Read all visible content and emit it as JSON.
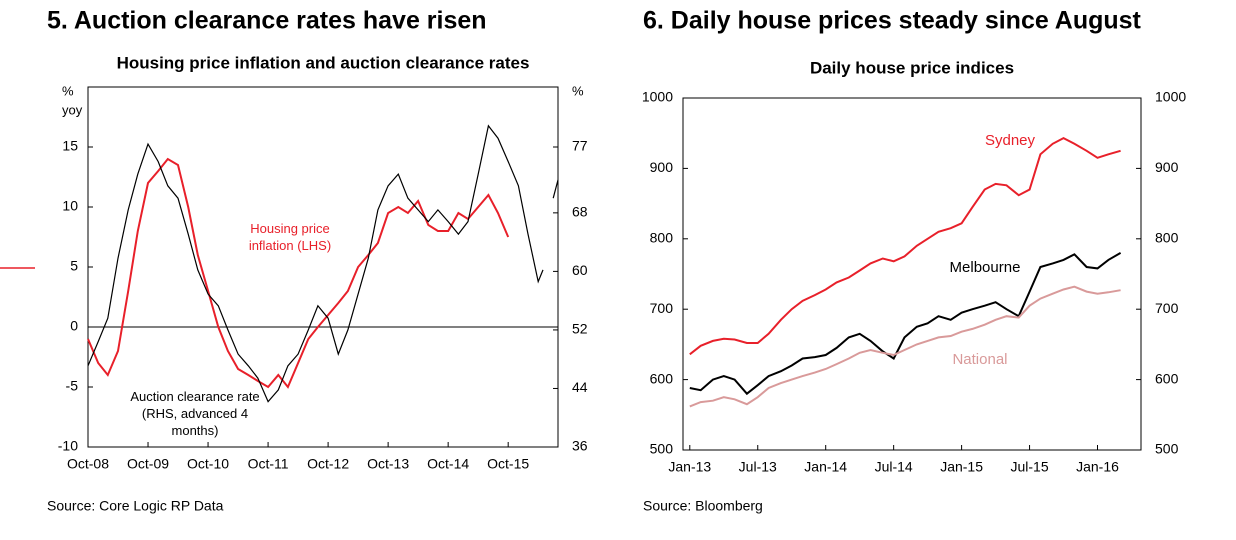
{
  "chart_data": [
    {
      "type": "line",
      "heading": "5. Auction clearance rates have risen",
      "title": "Housing price inflation and auction clearance rates",
      "source": "Source: Core Logic RP Data",
      "ylabel": [
        "%",
        "yoy"
      ],
      "y2label": "%",
      "xlim": [
        2008.75,
        2016.58
      ],
      "xticks": [
        {
          "value": 2008.75,
          "label": "Oct-08"
        },
        {
          "value": 2009.75,
          "label": "Oct-09"
        },
        {
          "value": 2010.75,
          "label": "Oct-10"
        },
        {
          "value": 2011.75,
          "label": "Oct-11"
        },
        {
          "value": 2012.75,
          "label": "Oct-12"
        },
        {
          "value": 2013.75,
          "label": "Oct-13"
        },
        {
          "value": 2014.75,
          "label": "Oct-14"
        },
        {
          "value": 2015.75,
          "label": "Oct-15"
        }
      ],
      "ylim": [
        -10,
        20
      ],
      "yticks": [
        -10,
        -5,
        0,
        5,
        10,
        15
      ],
      "y2lim": [
        36,
        85.2
      ],
      "y2ticks": [
        36,
        44,
        52,
        60,
        68,
        77
      ],
      "zero_line": true,
      "x": [
        2008.75,
        2008.92,
        2009.08,
        2009.25,
        2009.42,
        2009.58,
        2009.75,
        2009.92,
        2010.08,
        2010.25,
        2010.42,
        2010.58,
        2010.75,
        2010.92,
        2011.08,
        2011.25,
        2011.42,
        2011.58,
        2011.75,
        2011.92,
        2012.08,
        2012.25,
        2012.42,
        2012.58,
        2012.75,
        2012.92,
        2013.08,
        2013.25,
        2013.42,
        2013.58,
        2013.75,
        2013.92,
        2014.08,
        2014.25,
        2014.42,
        2014.58,
        2014.75,
        2014.92,
        2015.08,
        2015.25,
        2015.42,
        2015.58,
        2015.75,
        2015.92,
        2016.08,
        2016.25,
        2016.33,
        2016.42,
        2016.5,
        2016.58
      ],
      "series": [
        {
          "name": "Housing price inflation (LHS)",
          "color": "#e8202a",
          "values": [
            -1,
            -3,
            -4,
            -2,
            3,
            8,
            12,
            13,
            14,
            13.5,
            10,
            6,
            3,
            0,
            -2,
            -3.5,
            -4,
            -4.5,
            -5,
            -4,
            -5,
            -3,
            -1,
            0,
            1,
            2,
            3,
            5,
            6,
            7,
            9.5,
            10,
            9.5,
            10.5,
            8.5,
            8,
            8,
            9.5,
            9,
            10,
            11,
            9.5,
            7.5,
            null,
            null,
            null,
            null,
            null,
            null,
            null
          ]
        },
        {
          "name": "Auction clearance rate (RHS, advanced 4 months)",
          "color": "#000000",
          "axis": "y2",
          "values": [
            47.1,
            50.4,
            53.6,
            61.8,
            68.4,
            73.3,
            77.4,
            75,
            71.7,
            70,
            65.1,
            60.2,
            56.9,
            55.3,
            52,
            48.7,
            47.1,
            45.4,
            42.2,
            43.8,
            47.1,
            48.7,
            52,
            55.3,
            53.6,
            48.7,
            52,
            56.9,
            61.8,
            68.4,
            71.7,
            73.3,
            70,
            68.4,
            66.8,
            68.4,
            66.8,
            65.1,
            66.8,
            73.3,
            79.9,
            78.2,
            75,
            71.7,
            65.1,
            58.6,
            60.2,
            null,
            70,
            72.5
          ]
        }
      ]
    },
    {
      "type": "line",
      "heading": "6. Daily house prices steady since August",
      "title": "Daily house price indices",
      "source": "Source: Bloomberg",
      "xlim": [
        2012.95,
        2016.32
      ],
      "xticks": [
        {
          "value": 2013.0,
          "label": "Jan-13"
        },
        {
          "value": 2013.5,
          "label": "Jul-13"
        },
        {
          "value": 2014.0,
          "label": "Jan-14"
        },
        {
          "value": 2014.5,
          "label": "Jul-14"
        },
        {
          "value": 2015.0,
          "label": "Jan-15"
        },
        {
          "value": 2015.5,
          "label": "Jul-15"
        },
        {
          "value": 2016.0,
          "label": "Jan-16"
        }
      ],
      "ylim": [
        500,
        1000
      ],
      "yticks": [
        500,
        600,
        700,
        800,
        900,
        1000
      ],
      "y2lim": [
        500,
        1000
      ],
      "y2ticks": [
        500,
        600,
        700,
        800,
        900,
        1000
      ],
      "x": [
        2013.0,
        2013.08,
        2013.17,
        2013.25,
        2013.33,
        2013.42,
        2013.5,
        2013.58,
        2013.67,
        2013.75,
        2013.83,
        2013.92,
        2014.0,
        2014.08,
        2014.17,
        2014.25,
        2014.33,
        2014.42,
        2014.5,
        2014.58,
        2014.67,
        2014.75,
        2014.83,
        2014.92,
        2015.0,
        2015.08,
        2015.17,
        2015.25,
        2015.33,
        2015.42,
        2015.5,
        2015.58,
        2015.67,
        2015.75,
        2015.83,
        2015.92,
        2016.0,
        2016.08,
        2016.17
      ],
      "series": [
        {
          "name": "Sydney",
          "color": "#e8202a",
          "values": [
            636,
            648,
            655,
            658,
            657,
            652,
            652,
            665,
            685,
            700,
            712,
            720,
            728,
            738,
            745,
            755,
            765,
            772,
            768,
            775,
            790,
            800,
            810,
            815,
            822,
            845,
            870,
            878,
            876,
            862,
            870,
            920,
            935,
            943,
            935,
            925,
            915,
            920,
            925
          ]
        },
        {
          "name": "Melbourne",
          "color": "#000000",
          "values": [
            588,
            585,
            600,
            605,
            600,
            580,
            592,
            605,
            612,
            620,
            630,
            632,
            635,
            645,
            660,
            665,
            655,
            640,
            630,
            660,
            675,
            680,
            690,
            685,
            695,
            700,
            705,
            710,
            700,
            690,
            725,
            760,
            765,
            770,
            778,
            760,
            758,
            770,
            780
          ]
        },
        {
          "name": "National",
          "color": "#d99a9a",
          "values": [
            562,
            568,
            570,
            575,
            572,
            565,
            575,
            588,
            595,
            600,
            605,
            610,
            615,
            622,
            630,
            638,
            642,
            638,
            635,
            642,
            650,
            655,
            660,
            662,
            668,
            672,
            678,
            685,
            690,
            688,
            705,
            715,
            722,
            728,
            732,
            725,
            722,
            724,
            727
          ]
        }
      ]
    }
  ]
}
